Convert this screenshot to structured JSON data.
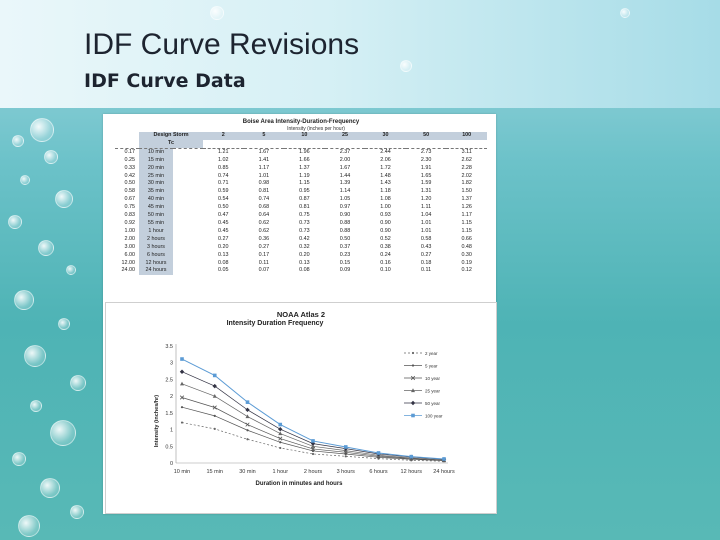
{
  "slide": {
    "title": "IDF Curve Revisions",
    "subtitle": "IDF Curve Data"
  },
  "table": {
    "title": "Boise Area Intensity-Duration-Frequency",
    "subtitle": "Intensity (inches per hour)",
    "header_label": "Design Storm",
    "tc_label": "Tc",
    "columns": [
      "2",
      "5",
      "10",
      "25",
      "30",
      "50",
      "100"
    ],
    "rows": [
      {
        "tc": "0.17",
        "dur": "10 min",
        "v": [
          "1.21",
          "1.67",
          "1.96",
          "2.37",
          "2.44",
          "2.73",
          "3.11"
        ]
      },
      {
        "tc": "0.25",
        "dur": "15 min",
        "v": [
          "1.02",
          "1.41",
          "1.66",
          "2.00",
          "2.06",
          "2.30",
          "2.62"
        ]
      },
      {
        "tc": "0.33",
        "dur": "20 min",
        "v": [
          "0.85",
          "1.17",
          "1.37",
          "1.67",
          "1.72",
          "1.91",
          "2.28"
        ]
      },
      {
        "tc": "0.42",
        "dur": "25 min",
        "v": [
          "0.74",
          "1.01",
          "1.19",
          "1.44",
          "1.48",
          "1.65",
          "2.02"
        ]
      },
      {
        "tc": "0.50",
        "dur": "30 min",
        "v": [
          "0.71",
          "0.98",
          "1.15",
          "1.39",
          "1.43",
          "1.59",
          "1.82"
        ]
      },
      {
        "tc": "0.58",
        "dur": "35 min",
        "v": [
          "0.59",
          "0.81",
          "0.95",
          "1.14",
          "1.18",
          "1.31",
          "1.50"
        ]
      },
      {
        "tc": "0.67",
        "dur": "40 min",
        "v": [
          "0.54",
          "0.74",
          "0.87",
          "1.05",
          "1.08",
          "1.20",
          "1.37"
        ]
      },
      {
        "tc": "0.75",
        "dur": "45 min",
        "v": [
          "0.50",
          "0.68",
          "0.81",
          "0.97",
          "1.00",
          "1.11",
          "1.26"
        ]
      },
      {
        "tc": "0.83",
        "dur": "50 min",
        "v": [
          "0.47",
          "0.64",
          "0.75",
          "0.90",
          "0.93",
          "1.04",
          "1.17"
        ]
      },
      {
        "tc": "0.92",
        "dur": "55 min",
        "v": [
          "0.45",
          "0.62",
          "0.73",
          "0.88",
          "0.90",
          "1.01",
          "1.15"
        ]
      },
      {
        "tc": "1.00",
        "dur": "1 hour",
        "v": [
          "0.45",
          "0.62",
          "0.73",
          "0.88",
          "0.90",
          "1.01",
          "1.15"
        ]
      },
      {
        "tc": "2.00",
        "dur": "2 hours",
        "v": [
          "0.27",
          "0.36",
          "0.42",
          "0.50",
          "0.52",
          "0.58",
          "0.66"
        ]
      },
      {
        "tc": "3.00",
        "dur": "3 hours",
        "v": [
          "0.20",
          "0.27",
          "0.32",
          "0.37",
          "0.38",
          "0.43",
          "0.48"
        ]
      },
      {
        "tc": "6.00",
        "dur": "6 hours",
        "v": [
          "0.13",
          "0.17",
          "0.20",
          "0.23",
          "0.24",
          "0.27",
          "0.30"
        ]
      },
      {
        "tc": "12.00",
        "dur": "12 hours",
        "v": [
          "0.08",
          "0.11",
          "0.13",
          "0.15",
          "0.16",
          "0.18",
          "0.19"
        ]
      },
      {
        "tc": "24.00",
        "dur": "24 hours",
        "v": [
          "0.05",
          "0.07",
          "0.08",
          "0.09",
          "0.10",
          "0.11",
          "0.12"
        ]
      }
    ]
  },
  "chart_data": {
    "type": "line",
    "title": "NOAA Atlas 2",
    "subtitle": "Intensity Duration Frequency",
    "xlabel": "Duration in minutes and hours",
    "ylabel": "Intensity (inches/hr)",
    "categories": [
      "10 min",
      "15 min",
      "30 min",
      "1 hour",
      "2 hours",
      "3 hours",
      "6 hours",
      "12 hours",
      "24 hours"
    ],
    "ylim": [
      0,
      3.5
    ],
    "yticks": [
      "0",
      "0.5",
      "1",
      "1.5",
      "2",
      "2.5",
      "3",
      "3.5"
    ],
    "grid": false,
    "legend": "right",
    "series": [
      {
        "name": "2 year",
        "values": [
          1.21,
          1.02,
          0.71,
          0.45,
          0.27,
          0.2,
          0.13,
          0.08,
          0.05
        ],
        "color": "#666666",
        "marker": "dot",
        "dash": "2,2"
      },
      {
        "name": "5 year",
        "values": [
          1.67,
          1.41,
          0.98,
          0.62,
          0.36,
          0.27,
          0.17,
          0.11,
          0.07
        ],
        "color": "#555555",
        "marker": "dot",
        "dash": ""
      },
      {
        "name": "10 year",
        "values": [
          1.96,
          1.66,
          1.15,
          0.73,
          0.42,
          0.32,
          0.2,
          0.13,
          0.08
        ],
        "color": "#555555",
        "marker": "x",
        "dash": ""
      },
      {
        "name": "25 year",
        "values": [
          2.37,
          2.0,
          1.39,
          0.88,
          0.5,
          0.37,
          0.23,
          0.15,
          0.09
        ],
        "color": "#666666",
        "marker": "triangle",
        "dash": ""
      },
      {
        "name": "50 year",
        "values": [
          2.73,
          2.3,
          1.59,
          1.01,
          0.58,
          0.43,
          0.27,
          0.18,
          0.11
        ],
        "color": "#333344",
        "marker": "diamond",
        "dash": ""
      },
      {
        "name": "100 year",
        "values": [
          3.11,
          2.62,
          1.82,
          1.15,
          0.66,
          0.48,
          0.3,
          0.19,
          0.12
        ],
        "color": "#5b9bd5",
        "marker": "square",
        "dash": ""
      }
    ]
  }
}
